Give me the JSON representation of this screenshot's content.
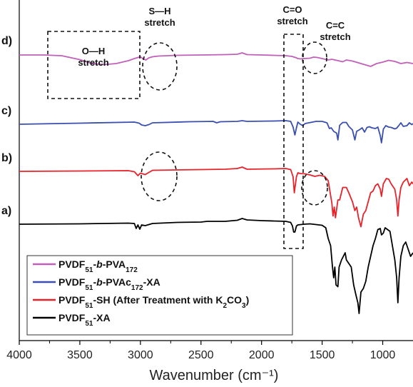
{
  "chart_data": {
    "type": "line",
    "title": "",
    "xlabel": "Wavenumber (cm⁻¹)",
    "ylabel": "",
    "xlim": [
      4000,
      750
    ],
    "x_reversed": true,
    "ylim": null,
    "x_ticks": [
      "4000",
      "3500",
      "3000",
      "2500",
      "2000",
      "1500",
      "1000"
    ],
    "x_tick_values": [
      4000,
      3500,
      3000,
      2500,
      2000,
      1500,
      1000
    ],
    "grid": false,
    "legend_position": "bottom-left",
    "series": [
      {
        "key": "d",
        "panel_label": "d)",
        "color": "#c060b8",
        "legend": {
          "pre": "PVDF",
          "sub1": "51",
          "mid": "-",
          "ital": "b",
          "mid2": "-PVA",
          "sub2": "172",
          "post": ""
        },
        "points": [
          [
            4000,
            0
          ],
          [
            3800,
            0
          ],
          [
            3650,
            -2
          ],
          [
            3500,
            -13
          ],
          [
            3400,
            -24
          ],
          [
            3300,
            -27
          ],
          [
            3200,
            -24
          ],
          [
            3100,
            -16
          ],
          [
            3050,
            -10
          ],
          [
            3000,
            -5
          ],
          [
            2980,
            -10
          ],
          [
            2955,
            -14
          ],
          [
            2930,
            -8
          ],
          [
            2900,
            -5
          ],
          [
            2850,
            -3
          ],
          [
            2700,
            -1
          ],
          [
            2500,
            0
          ],
          [
            2300,
            1
          ],
          [
            2200,
            2
          ],
          [
            2160,
            6
          ],
          [
            2120,
            1
          ],
          [
            2000,
            0
          ],
          [
            1900,
            -1
          ],
          [
            1800,
            -2
          ],
          [
            1750,
            -4
          ],
          [
            1720,
            -7
          ],
          [
            1700,
            -10
          ],
          [
            1680,
            -11
          ],
          [
            1650,
            -10
          ],
          [
            1600,
            -9
          ],
          [
            1570,
            -6
          ],
          [
            1540,
            -7
          ],
          [
            1500,
            -10
          ],
          [
            1450,
            -14
          ],
          [
            1420,
            -12
          ],
          [
            1380,
            -15
          ],
          [
            1330,
            -19
          ],
          [
            1300,
            -14
          ],
          [
            1250,
            -17
          ],
          [
            1180,
            -24
          ],
          [
            1100,
            -32
          ],
          [
            1050,
            -24
          ],
          [
            1000,
            -20
          ],
          [
            950,
            -15
          ],
          [
            900,
            -18
          ],
          [
            850,
            -24
          ],
          [
            800,
            -21
          ],
          [
            750,
            -24
          ]
        ]
      },
      {
        "key": "c",
        "panel_label": "c)",
        "color": "#3a4fb0",
        "legend": {
          "pre": "PVDF",
          "sub1": "51",
          "mid": "-",
          "ital": "b",
          "mid2": "-PVAc",
          "sub2": "172",
          "post": "-XA"
        },
        "points": [
          [
            4000,
            0
          ],
          [
            3500,
            3
          ],
          [
            3050,
            6
          ],
          [
            3010,
            3
          ],
          [
            2990,
            -2
          ],
          [
            2960,
            -4
          ],
          [
            2930,
            -1
          ],
          [
            2900,
            4
          ],
          [
            2600,
            7
          ],
          [
            2400,
            8
          ],
          [
            2370,
            4
          ],
          [
            2340,
            7
          ],
          [
            2200,
            8
          ],
          [
            2160,
            10
          ],
          [
            2120,
            8
          ],
          [
            1900,
            9
          ],
          [
            1800,
            10
          ],
          [
            1760,
            8
          ],
          [
            1740,
            -8
          ],
          [
            1725,
            -30
          ],
          [
            1712,
            -10
          ],
          [
            1700,
            6
          ],
          [
            1680,
            0
          ],
          [
            1660,
            -4
          ],
          [
            1640,
            2
          ],
          [
            1550,
            8
          ],
          [
            1500,
            8
          ],
          [
            1460,
            4
          ],
          [
            1440,
            -12
          ],
          [
            1425,
            -10
          ],
          [
            1405,
            -20
          ],
          [
            1380,
            -25
          ],
          [
            1370,
            -44
          ],
          [
            1355,
            -3
          ],
          [
            1330,
            5
          ],
          [
            1300,
            5
          ],
          [
            1280,
            -6
          ],
          [
            1250,
            -16
          ],
          [
            1230,
            -44
          ],
          [
            1215,
            -20
          ],
          [
            1190,
            -15
          ],
          [
            1170,
            -10
          ],
          [
            1150,
            -22
          ],
          [
            1130,
            -9
          ],
          [
            1110,
            -7
          ],
          [
            1090,
            -10
          ],
          [
            1060,
            -12
          ],
          [
            1040,
            -8
          ],
          [
            1020,
            -32
          ],
          [
            1010,
            -52
          ],
          [
            995,
            -14
          ],
          [
            975,
            -4
          ],
          [
            950,
            -8
          ],
          [
            930,
            -9
          ],
          [
            900,
            -13
          ],
          [
            885,
            -11
          ],
          [
            870,
            -5
          ],
          [
            850,
            4
          ],
          [
            830,
            -6
          ],
          [
            800,
            -4
          ],
          [
            780,
            4
          ],
          [
            760,
            -1
          ],
          [
            750,
            2
          ]
        ]
      },
      {
        "key": "b",
        "panel_label": "b)",
        "color": "#e8222a",
        "legend": {
          "pre": "PVDF",
          "sub1": "51",
          "mid": "",
          "ital": "",
          "mid2": "-SH (After Treatment with K",
          "sub2": "2",
          "post": "CO",
          "sub3": "3",
          "post2": ")"
        },
        "points": [
          [
            4000,
            0
          ],
          [
            3500,
            1
          ],
          [
            3100,
            2
          ],
          [
            3050,
            -1
          ],
          [
            3020,
            -12
          ],
          [
            3000,
            -5
          ],
          [
            2960,
            -9
          ],
          [
            2930,
            -3
          ],
          [
            2900,
            3
          ],
          [
            2700,
            4
          ],
          [
            2500,
            5
          ],
          [
            2300,
            6
          ],
          [
            2200,
            8
          ],
          [
            2160,
            12
          ],
          [
            2120,
            6
          ],
          [
            1900,
            7
          ],
          [
            1800,
            8
          ],
          [
            1760,
            5
          ],
          [
            1740,
            -15
          ],
          [
            1730,
            -60
          ],
          [
            1712,
            -15
          ],
          [
            1700,
            -4
          ],
          [
            1680,
            -6
          ],
          [
            1640,
            -7
          ],
          [
            1600,
            -10
          ],
          [
            1560,
            -14
          ],
          [
            1520,
            -11
          ],
          [
            1480,
            -14
          ],
          [
            1450,
            -26
          ],
          [
            1420,
            -88
          ],
          [
            1410,
            -125
          ],
          [
            1400,
            -100
          ],
          [
            1390,
            -130
          ],
          [
            1370,
            -80
          ],
          [
            1355,
            -80
          ],
          [
            1330,
            -45
          ],
          [
            1300,
            -45
          ],
          [
            1280,
            -60
          ],
          [
            1250,
            -85
          ],
          [
            1230,
            -110
          ],
          [
            1215,
            -100
          ],
          [
            1200,
            -130
          ],
          [
            1180,
            -155
          ],
          [
            1160,
            -120
          ],
          [
            1140,
            -110
          ],
          [
            1100,
            -60
          ],
          [
            1080,
            -55
          ],
          [
            1060,
            -40
          ],
          [
            1040,
            -35
          ],
          [
            1020,
            -50
          ],
          [
            1010,
            -70
          ],
          [
            995,
            -35
          ],
          [
            970,
            -20
          ],
          [
            950,
            -22
          ],
          [
            930,
            -35
          ],
          [
            900,
            -50
          ],
          [
            885,
            -80
          ],
          [
            875,
            -125
          ],
          [
            865,
            -80
          ],
          [
            850,
            -45
          ],
          [
            830,
            -30
          ],
          [
            800,
            -20
          ],
          [
            780,
            -40
          ],
          [
            760,
            -30
          ],
          [
            750,
            -35
          ]
        ]
      },
      {
        "key": "a",
        "panel_label": "a)",
        "color": "#000000",
        "legend": {
          "pre": "PVDF",
          "sub1": "51",
          "mid": "",
          "ital": "",
          "mid2": "-XA",
          "sub2": "",
          "post": ""
        },
        "points": [
          [
            4000,
            0
          ],
          [
            3500,
            1
          ],
          [
            3100,
            3
          ],
          [
            3050,
            2
          ],
          [
            3035,
            -12
          ],
          [
            3020,
            -2
          ],
          [
            3005,
            -14
          ],
          [
            2990,
            -2
          ],
          [
            2960,
            -4
          ],
          [
            2900,
            2
          ],
          [
            2700,
            5
          ],
          [
            2500,
            6
          ],
          [
            2450,
            8
          ],
          [
            2300,
            8
          ],
          [
            2200,
            11
          ],
          [
            2160,
            16
          ],
          [
            2120,
            12
          ],
          [
            2000,
            10
          ],
          [
            1900,
            9
          ],
          [
            1800,
            8
          ],
          [
            1760,
            5
          ],
          [
            1745,
            -5
          ],
          [
            1735,
            -22
          ],
          [
            1725,
            -22
          ],
          [
            1712,
            -5
          ],
          [
            1700,
            -2
          ],
          [
            1650,
            0
          ],
          [
            1600,
            1
          ],
          [
            1550,
            -1
          ],
          [
            1500,
            -3
          ],
          [
            1470,
            -10
          ],
          [
            1450,
            -40
          ],
          [
            1430,
            -60
          ],
          [
            1415,
            -120
          ],
          [
            1405,
            -150
          ],
          [
            1395,
            -120
          ],
          [
            1385,
            -170
          ],
          [
            1370,
            -175
          ],
          [
            1360,
            -120
          ],
          [
            1340,
            -100
          ],
          [
            1310,
            -80
          ],
          [
            1300,
            -100
          ],
          [
            1280,
            -110
          ],
          [
            1260,
            -120
          ],
          [
            1240,
            -170
          ],
          [
            1220,
            -200
          ],
          [
            1205,
            -220
          ],
          [
            1195,
            -250
          ],
          [
            1180,
            -190
          ],
          [
            1160,
            -180
          ],
          [
            1140,
            -160
          ],
          [
            1120,
            -120
          ],
          [
            1100,
            -90
          ],
          [
            1080,
            -60
          ],
          [
            1060,
            -40
          ],
          [
            1040,
            -15
          ],
          [
            1020,
            -12
          ],
          [
            1010,
            -30
          ],
          [
            995,
            -25
          ],
          [
            980,
            -10
          ],
          [
            960,
            -15
          ],
          [
            940,
            -20
          ],
          [
            920,
            -60
          ],
          [
            900,
            -100
          ],
          [
            885,
            -150
          ],
          [
            875,
            -220
          ],
          [
            865,
            -150
          ],
          [
            850,
            -90
          ],
          [
            830,
            -60
          ],
          [
            810,
            -50
          ],
          [
            790,
            -70
          ],
          [
            770,
            -90
          ],
          [
            750,
            -80
          ]
        ]
      }
    ],
    "annotations": [
      {
        "key": "oh",
        "line1": "O",
        "bond": "—",
        "line2": "H",
        "text": "stretch",
        "shape": "dashed-rectangle"
      },
      {
        "key": "sh",
        "line1": "S",
        "bond": "—",
        "line2": "H",
        "text": "stretch",
        "shape": "dashed-ellipse"
      },
      {
        "key": "co",
        "line1": "C",
        "bond": "=",
        "line2": "O",
        "text": "stretch",
        "shape": "dashed-rectangle"
      },
      {
        "key": "cc",
        "line1": "C",
        "bond": "=",
        "line2": "C",
        "text": "stretch",
        "shape": "dashed-ellipse"
      }
    ]
  }
}
